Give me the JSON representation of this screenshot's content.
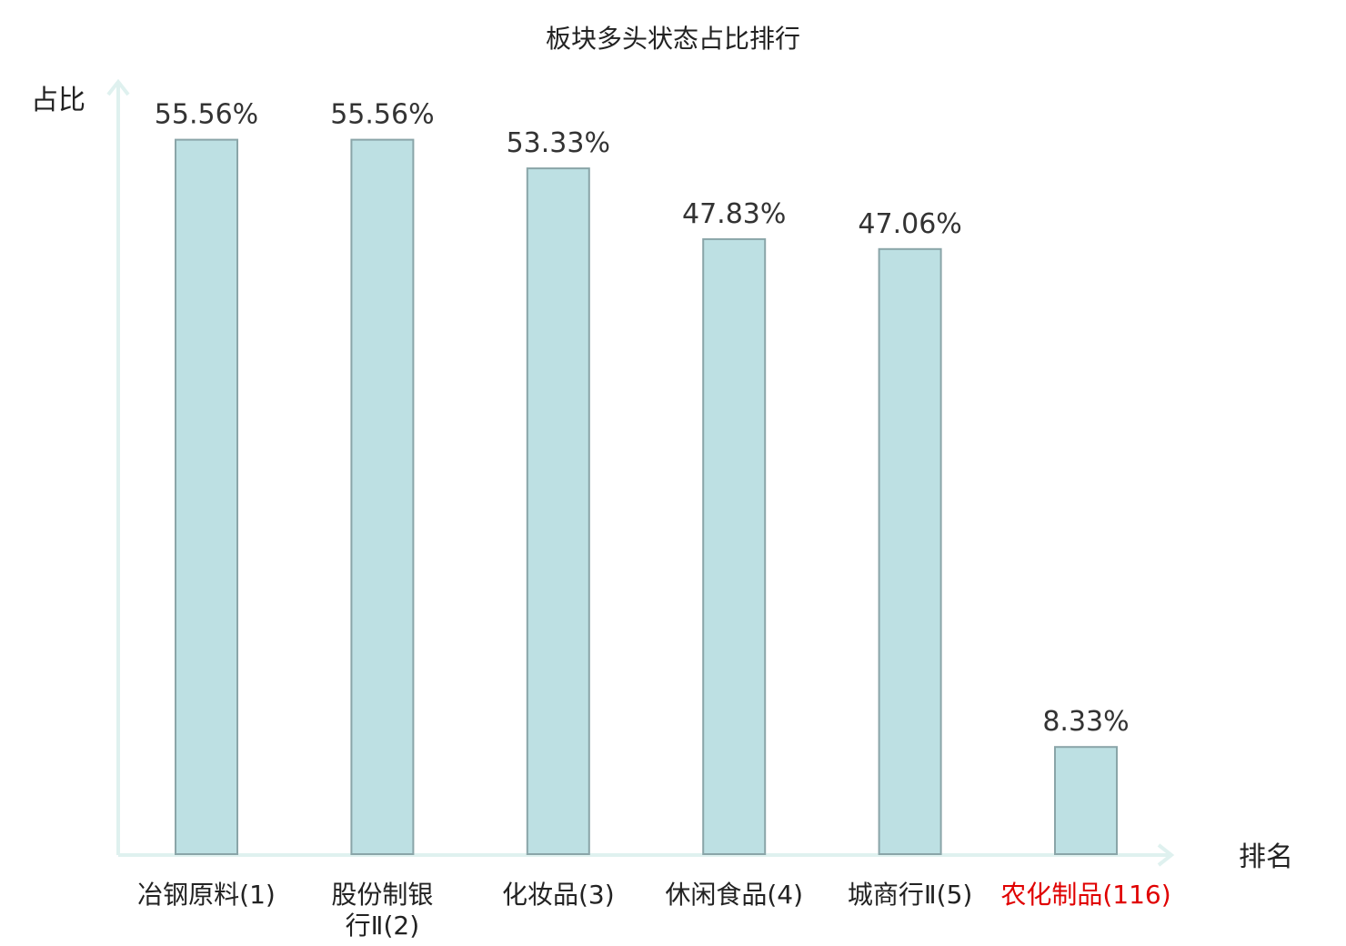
{
  "chart_data": {
    "type": "bar",
    "title": "板块多头状态占比排行",
    "ylabel": "占比",
    "xlabel": "排名",
    "categories": [
      "冶钢原料(1)",
      "股份制银行Ⅱ(2)",
      "化妆品(3)",
      "休闲食品(4)",
      "城商行Ⅱ(5)",
      "农化制品(116)"
    ],
    "category_lines": [
      [
        "冶钢原料(1)"
      ],
      [
        "股份制银",
        "行Ⅱ(2)"
      ],
      [
        "化妆品(3)"
      ],
      [
        "休闲食品(4)"
      ],
      [
        "城商行Ⅱ(5)"
      ],
      [
        "农化制品(116)"
      ]
    ],
    "values": [
      55.56,
      55.56,
      53.33,
      47.83,
      47.06,
      8.33
    ],
    "value_labels": [
      "55.56%",
      "55.56%",
      "53.33%",
      "47.83%",
      "47.06%",
      "8.33%"
    ],
    "highlight_index": 5,
    "ylim": [
      0,
      60
    ],
    "grid": false,
    "colors": {
      "bar_fill": "#bde0e3",
      "bar_stroke": "#8aa5a8",
      "axis": "#dff1ef",
      "text": "#222222",
      "highlight": "#e00000"
    }
  }
}
